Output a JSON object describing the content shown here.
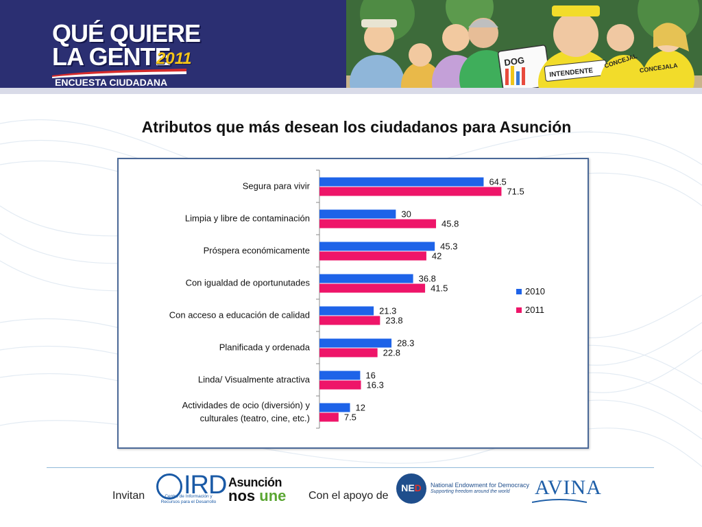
{
  "header": {
    "logo_line1": "QUÉ QUIERE",
    "logo_line2": "LA GENTE",
    "logo_year": "2011",
    "logo_subtitle": "ENCUESTA CIUDADANA",
    "cartoon_signs": [
      "INTENDENTE",
      "CONCEJAL",
      "CONCEJALA"
    ]
  },
  "colors": {
    "header_bg": "#2b2f72",
    "series_2010": "#1e63e8",
    "series_2011": "#ee1569",
    "frame_border": "#4a6897"
  },
  "chart_data": {
    "type": "bar",
    "orientation": "horizontal",
    "title": "Atributos que más desean los ciudadanos para Asunción",
    "categories": [
      "Segura para vivir",
      "Limpia y libre de contaminación",
      "Próspera económicamente",
      "Con igualdad de oportunutades",
      "Con acceso a educación de calidad",
      "Planificada y ordenada",
      "Linda/ Visualmente atractiva",
      "Actividades de ocio (diversión) y culturales (teatro, cine, etc.)"
    ],
    "category_lines": [
      [
        "Segura para vivir"
      ],
      [
        "Limpia y libre de contaminación"
      ],
      [
        "Próspera económicamente"
      ],
      [
        "Con igualdad de oportunutades"
      ],
      [
        "Con acceso a educación de calidad"
      ],
      [
        "Planificada y ordenada"
      ],
      [
        "Linda/ Visualmente atractiva"
      ],
      [
        "Actividades de ocio (diversión) y",
        "culturales (teatro, cine, etc.)"
      ]
    ],
    "series": [
      {
        "name": "2010",
        "values": [
          64.5,
          30,
          45.3,
          36.8,
          21.3,
          28.3,
          16,
          12
        ],
        "labels": [
          "64.5",
          "30",
          "45.3",
          "36.8",
          "21.3",
          "28.3",
          "16",
          "12"
        ]
      },
      {
        "name": "2011",
        "values": [
          71.5,
          45.8,
          42,
          41.5,
          23.8,
          22.8,
          16.3,
          7.5
        ],
        "labels": [
          "71.5",
          "45.8",
          "42",
          "41.5",
          "23.8",
          "22.8",
          "16.3",
          "7.5"
        ]
      }
    ],
    "xlim": [
      0,
      80
    ],
    "legend_position": "right",
    "data_labels": true,
    "grid": false
  },
  "footer": {
    "invitan": "Invitan",
    "con_apoyo": "Con el apoyo de",
    "ird_letters": "IRD",
    "ird_caption": "Centro de Información y Recursos para el Desarrollo",
    "asuncion_top": "Asunción",
    "asuncion_bottom_a": "nos",
    "asuncion_bottom_b": "une",
    "ned_circle": "NE",
    "ned_circle_d": "D",
    "ned_name": "National Endowment for Democracy",
    "ned_tag": "Supporting freedom around the world",
    "avina": "AVINA"
  }
}
